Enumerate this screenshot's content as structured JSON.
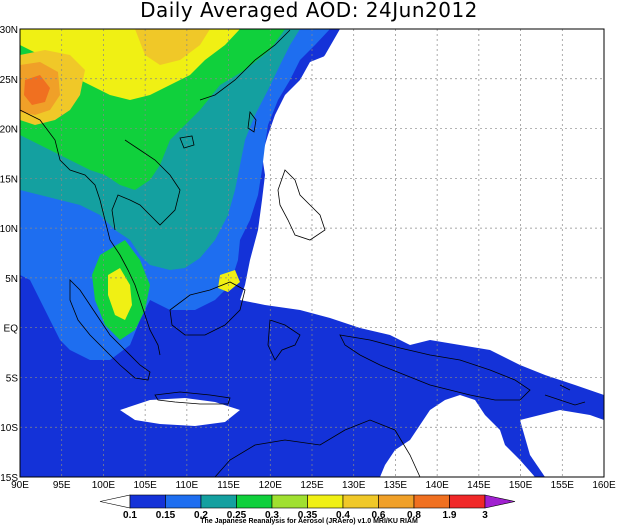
{
  "title": "Daily Averaged AOD: 24Jun2012",
  "credit": "The Japanese Reanalysis for Aerosol (JRAero) v1.0 MRI/KU RIAM",
  "colors": {
    "land_outline": "#000000",
    "grid": "#888888",
    "background": "#ffffff"
  },
  "map": {
    "lon_range": [
      90,
      160
    ],
    "lat_range": [
      -15,
      30
    ],
    "lon_labels": [
      "90E",
      "95E",
      "100E",
      "105E",
      "110E",
      "115E",
      "120E",
      "125E",
      "130E",
      "135E",
      "140E",
      "145E",
      "150E",
      "155E",
      "160E"
    ],
    "lat_labels": [
      "30N",
      "25N",
      "20N",
      "15N",
      "10N",
      "5N",
      "EQ",
      "5S",
      "10S",
      "15S"
    ]
  },
  "colorbar": {
    "bins": [
      {
        "color": "#ffffff"
      },
      {
        "color": "#1432d8"
      },
      {
        "color": "#1e6ef0"
      },
      {
        "color": "#14a0a0"
      },
      {
        "color": "#10d03c"
      },
      {
        "color": "#a0e030"
      },
      {
        "color": "#f0f014"
      },
      {
        "color": "#f0c828"
      },
      {
        "color": "#f0a028"
      },
      {
        "color": "#f07020"
      },
      {
        "color": "#f02828"
      },
      {
        "color": "#a020d0"
      }
    ],
    "labels": [
      "0.1",
      "0.15",
      "0.2",
      "0.25",
      "0.3",
      "0.35",
      "0.4",
      "0.6",
      "0.8",
      "1.9",
      "3"
    ]
  },
  "regions": [
    {
      "name": "aod-0.15-main",
      "color": "#1432d8"
    },
    {
      "name": "aod-0.2-inland",
      "color": "#1e6ef0"
    },
    {
      "name": "aod-0.25-core",
      "color": "#14a0a0"
    },
    {
      "name": "aod-0.3-green",
      "color": "#10d03c"
    },
    {
      "name": "aod-0.4-yellow",
      "color": "#f0f014"
    },
    {
      "name": "aod-0.6-orange",
      "color": "#f0c828"
    },
    {
      "name": "aod-0.8-dark-orange",
      "color": "#f0a028"
    },
    {
      "name": "aod-1.9-red-orange",
      "color": "#f07020"
    }
  ]
}
